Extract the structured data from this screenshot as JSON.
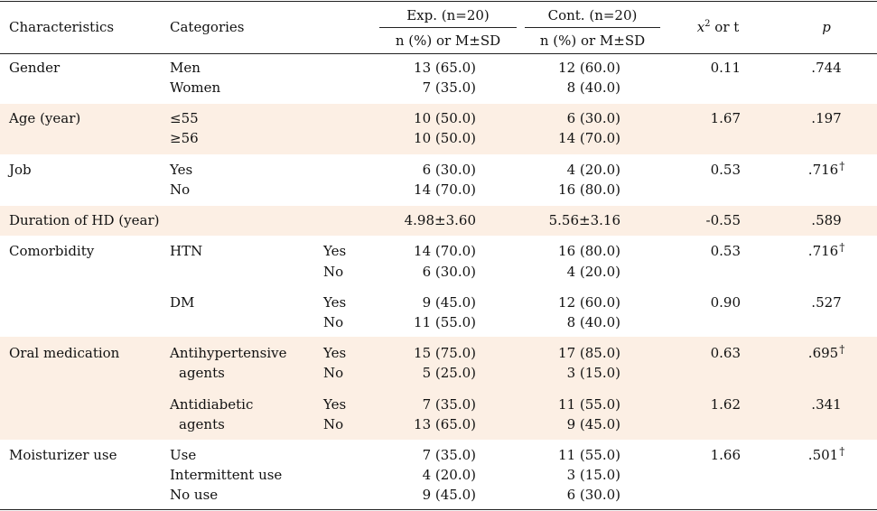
{
  "header": {
    "characteristics": "Characteristics",
    "categories": "Categories",
    "exp_group": "Exp. (n=20)",
    "cont_group": "Cont. (n=20)",
    "exp_sub": "n (%) or M±SD",
    "cont_sub": "n (%) or M±SD",
    "stat_prefix": "x",
    "stat_sup": "2",
    "stat_suffix": " or t",
    "p": "p"
  },
  "footnote_mark": "†",
  "rows": {
    "gender": {
      "label": "Gender",
      "cat1": "Men",
      "cat2": "Women",
      "exp1": "13 (65.0)",
      "exp2": "7 (35.0)",
      "cont1": "12 (60.0)",
      "cont2": "8 (40.0)",
      "stat": "0.11",
      "p": ".744"
    },
    "age": {
      "label": "Age (year)",
      "cat1": "≤55",
      "cat2": "≥56",
      "exp1": "10 (50.0)",
      "exp2": "10 (50.0)",
      "cont1": "6 (30.0)",
      "cont2": "14 (70.0)",
      "stat": "1.67",
      "p": ".197"
    },
    "job": {
      "label": "Job",
      "cat1": "Yes",
      "cat2": "No",
      "exp1": "6 (30.0)",
      "exp2": "14 (70.0)",
      "cont1": "4 (20.0)",
      "cont2": "16 (80.0)",
      "stat": "0.53",
      "p": ".716"
    },
    "duration": {
      "label": "Duration of HD (year)",
      "exp": "4.98±3.60",
      "cont": "5.56±3.16",
      "stat": "-0.55",
      "p": ".589"
    },
    "comorbidity": {
      "label": "Comorbidity",
      "htn": {
        "cat": "HTN",
        "sub1": "Yes",
        "sub2": "No",
        "exp1": "14 (70.0)",
        "exp2": "6 (30.0)",
        "cont1": "16 (80.0)",
        "cont2": "4 (20.0)",
        "stat": "0.53",
        "p": ".716"
      },
      "dm": {
        "cat": "DM",
        "sub1": "Yes",
        "sub2": "No",
        "exp1": "9 (45.0)",
        "exp2": "11 (55.0)",
        "cont1": "12 (60.0)",
        "cont2": "8 (40.0)",
        "stat": "0.90",
        "p": ".527"
      }
    },
    "oral": {
      "label": "Oral medication",
      "anti_htn": {
        "cat_line1": "Antihypertensive",
        "cat_line2": "agents",
        "sub1": "Yes",
        "sub2": "No",
        "exp1": "15 (75.0)",
        "exp2": "5 (25.0)",
        "cont1": "17 (85.0)",
        "cont2": "3 (15.0)",
        "stat": "0.63",
        "p": ".695"
      },
      "anti_dm": {
        "cat_line1": "Antidiabetic",
        "cat_line2": "agents",
        "sub1": "Yes",
        "sub2": "No",
        "exp1": "7 (35.0)",
        "exp2": "13 (65.0)",
        "cont1": "11 (55.0)",
        "cont2": "9 (45.0)",
        "stat": "1.62",
        "p": ".341"
      }
    },
    "moist": {
      "label": "Moisturizer use",
      "cat1": "Use",
      "cat2": "Intermittent use",
      "cat3": "No use",
      "exp1": "7 (35.0)",
      "exp2": "4 (20.0)",
      "exp3": "9 (45.0)",
      "cont1": "11 (55.0)",
      "cont2": "3 (15.0)",
      "cont3": "6 (30.0)",
      "stat": "1.66",
      "p": ".501"
    }
  }
}
